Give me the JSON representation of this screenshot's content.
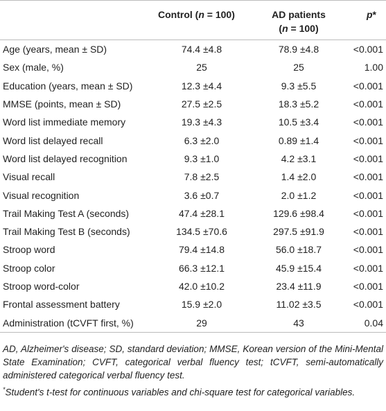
{
  "table": {
    "header": {
      "control": {
        "name": "Control",
        "open": "(",
        "var": "n",
        "rest": " = 100)"
      },
      "ad": {
        "name": "AD patients",
        "open": "(",
        "var": "n",
        "rest": " = 100)"
      },
      "p": {
        "var": "p",
        "mark": "*"
      }
    },
    "rows": [
      [
        "Age (years, mean ± SD)",
        "74.4 ±4.8",
        "78.9 ±4.8",
        "<0.001"
      ],
      [
        "Sex (male, %)",
        "25",
        "25",
        "1.00"
      ],
      [
        "Education (years, mean ± SD)",
        "12.3 ±4.4",
        "9.3 ±5.5",
        "<0.001"
      ],
      [
        "MMSE (points, mean ± SD)",
        "27.5 ±2.5",
        "18.3 ±5.2",
        "<0.001"
      ],
      [
        "Word list immediate memory",
        "19.3 ±4.3",
        "10.5 ±3.4",
        "<0.001"
      ],
      [
        "Word list delayed recall",
        "6.3 ±2.0",
        "0.89 ±1.4",
        "<0.001"
      ],
      [
        "Word list delayed recognition",
        "9.3 ±1.0",
        "4.2 ±3.1",
        "<0.001"
      ],
      [
        "Visual recall",
        "7.8 ±2.5",
        "1.4 ±2.0",
        "<0.001"
      ],
      [
        "Visual recognition",
        "3.6 ±0.7",
        "2.0 ±1.2",
        "<0.001"
      ],
      [
        "Trail Making Test A (seconds)",
        "47.4 ±28.1",
        "129.6 ±98.4",
        "<0.001"
      ],
      [
        "Trail Making Test B (seconds)",
        "134.5 ±70.6",
        "297.5 ±91.9",
        "<0.001"
      ],
      [
        "Stroop word",
        "79.4 ±14.8",
        "56.0 ±18.7",
        "<0.001"
      ],
      [
        "Stroop color",
        "66.3 ±12.1",
        "45.9 ±15.4",
        "<0.001"
      ],
      [
        "Stroop word-color",
        "42.0 ±10.2",
        "23.4 ±11.9",
        "<0.001"
      ],
      [
        "Frontal assessment battery",
        "15.9 ±2.0",
        "11.02 ±3.5",
        "<0.001"
      ],
      [
        "Administration (tCVFT first, %)",
        "29",
        "43",
        "0.04"
      ]
    ]
  },
  "footnotes": {
    "abbreviations": "AD, Alzheimer's disease; SD, standard deviation; MMSE, Korean version of the Mini-Mental State Examination; CVFT, categorical verbal fluency test; tCVFT, semi-automatically administered categorical verbal fluency test.",
    "note": {
      "mark": "*",
      "text": "Student's t-test for continuous variables and chi-square test for categorical variables."
    }
  }
}
